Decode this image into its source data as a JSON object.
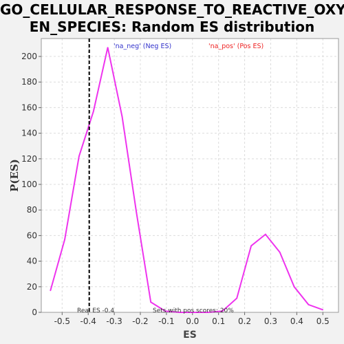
{
  "title_lines": [
    "GO_CELLULAR_RESPONSE_TO_REACTIVE_OXYG",
    "EN_SPECIES: Random ES distribution"
  ],
  "chart_data": {
    "type": "line",
    "title": "GO_CELLULAR_RESPONSE_TO_REACTIVE_OXYGEN_SPECIES: Random ES distribution",
    "xlabel": "ES",
    "ylabel": "P(ES)",
    "xlim": [
      -0.58,
      0.56
    ],
    "ylim": [
      0,
      214
    ],
    "xticks": [
      -0.5,
      -0.4,
      -0.3,
      -0.2,
      -0.1,
      0.0,
      0.1,
      0.2,
      0.3,
      0.4,
      0.5
    ],
    "xtick_labels": [
      "-0.5",
      "-0.4",
      "-0.3",
      "-0.2",
      "-0.1",
      "0.0",
      "0.1",
      "0.2",
      "0.3",
      "0.4",
      "0.5"
    ],
    "yticks": [
      0,
      20,
      40,
      60,
      80,
      100,
      120,
      140,
      160,
      180,
      200
    ],
    "ytick_labels": [
      "0",
      "20",
      "40",
      "60",
      "80",
      "100",
      "120",
      "140",
      "160",
      "180",
      "200"
    ],
    "grid": true,
    "series": [
      {
        "color": "#ee33ee",
        "x": [
          -0.545,
          -0.49,
          -0.435,
          -0.38,
          -0.325,
          -0.27,
          -0.215,
          -0.16,
          -0.105,
          -0.05,
          0.005,
          0.06,
          0.115,
          0.17,
          0.225,
          0.28,
          0.335,
          0.39,
          0.445,
          0.5
        ],
        "y": [
          17,
          57,
          122,
          157,
          207,
          153,
          78,
          8,
          1,
          0,
          0,
          0,
          1,
          11,
          52,
          61,
          47,
          20,
          6,
          2
        ]
      }
    ],
    "vline": {
      "x": -0.396,
      "color": "#000000",
      "style": "dashed"
    },
    "legend": [
      {
        "label": "'na_neg' (Neg ES)",
        "color": "#3333cc"
      },
      {
        "label": "'na_pos' (Pos ES)",
        "color": "#ee2222"
      }
    ],
    "annotations": [
      "Real ES -0.4",
      "Sets with pos scores: 20%"
    ]
  }
}
